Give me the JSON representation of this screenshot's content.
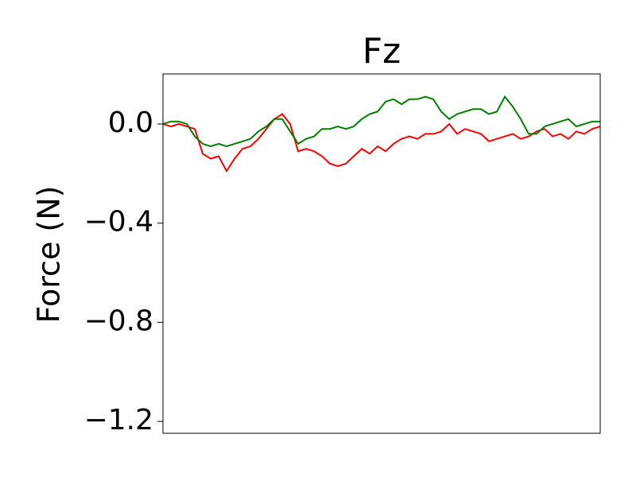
{
  "chart_data": {
    "type": "line",
    "title": "Fz",
    "y_label": "Force (N)",
    "x": [
      0,
      1,
      2,
      3,
      4,
      5,
      6,
      7,
      8,
      9,
      10,
      11,
      12,
      13,
      14,
      15,
      16,
      17,
      18,
      19,
      20,
      21,
      22,
      23,
      24,
      25,
      26,
      27,
      28,
      29,
      30,
      31,
      32,
      33,
      34,
      35,
      36,
      37,
      38,
      39,
      40,
      41,
      42,
      43,
      44,
      45,
      46,
      47,
      48,
      49,
      50,
      51,
      52,
      53,
      54,
      55
    ],
    "xlim": [
      0,
      55
    ],
    "series": [
      {
        "color": "#ff0000",
        "values": [
          0.0,
          -0.01,
          0.0,
          -0.01,
          -0.02,
          -0.12,
          -0.14,
          -0.13,
          -0.19,
          -0.14,
          -0.1,
          -0.09,
          -0.06,
          -0.02,
          0.02,
          0.04,
          0.0,
          -0.11,
          -0.1,
          -0.11,
          -0.13,
          -0.16,
          -0.17,
          -0.16,
          -0.13,
          -0.1,
          -0.12,
          -0.09,
          -0.11,
          -0.08,
          -0.06,
          -0.05,
          -0.06,
          -0.04,
          -0.04,
          -0.03,
          0.0,
          -0.04,
          -0.02,
          -0.03,
          -0.04,
          -0.07,
          -0.06,
          -0.05,
          -0.04,
          -0.06,
          -0.05,
          -0.03,
          -0.02,
          -0.05,
          -0.04,
          -0.06,
          -0.03,
          -0.04,
          -0.02,
          -0.01
        ]
      },
      {
        "color": "#008000",
        "values": [
          0.0,
          0.01,
          0.01,
          0.0,
          -0.05,
          -0.08,
          -0.09,
          -0.08,
          -0.09,
          -0.08,
          -0.07,
          -0.06,
          -0.03,
          -0.01,
          0.02,
          0.02,
          -0.03,
          -0.08,
          -0.06,
          -0.05,
          -0.02,
          -0.02,
          -0.01,
          -0.02,
          -0.01,
          0.02,
          0.04,
          0.05,
          0.09,
          0.1,
          0.08,
          0.1,
          0.1,
          0.11,
          0.1,
          0.05,
          0.02,
          0.04,
          0.05,
          0.06,
          0.06,
          0.04,
          0.05,
          0.11,
          0.07,
          0.02,
          -0.04,
          -0.04,
          -0.01,
          0.0,
          0.01,
          0.02,
          -0.01,
          0.0,
          0.01,
          0.01
        ]
      }
    ],
    "ylim": [
      -1.248,
      0.202
    ],
    "yticks": [
      {
        "value": -1.2,
        "label": "−1.2"
      },
      {
        "value": -0.8,
        "label": "−0.8"
      },
      {
        "value": -0.4,
        "label": "−0.4"
      },
      {
        "value": 0,
        "label": "0.0"
      }
    ],
    "grid": false
  }
}
